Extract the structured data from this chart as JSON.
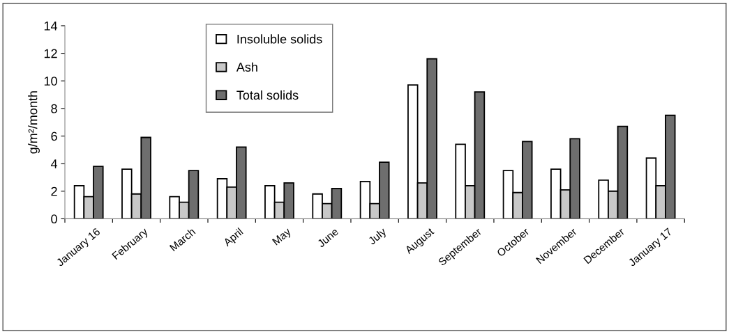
{
  "chart_data": {
    "type": "bar",
    "ylabel": "g/m²/month",
    "categories": [
      "January 16",
      "February",
      "March",
      "April",
      "May",
      "June",
      "July",
      "August",
      "September",
      "October",
      "November",
      "December",
      "January 17"
    ],
    "series": [
      {
        "name": "Insoluble solids",
        "color": "#ffffff",
        "values": [
          2.4,
          3.6,
          1.6,
          2.9,
          2.4,
          1.8,
          2.7,
          9.7,
          5.4,
          3.5,
          3.6,
          2.8,
          4.4
        ]
      },
      {
        "name": "Ash",
        "color": "#c8c8c8",
        "values": [
          1.6,
          1.8,
          1.2,
          2.3,
          1.2,
          1.1,
          1.1,
          2.6,
          2.4,
          1.9,
          2.1,
          2.0,
          2.4
        ]
      },
      {
        "name": "Total solids",
        "color": "#6e6e6e",
        "values": [
          3.8,
          5.9,
          3.5,
          5.2,
          2.6,
          2.2,
          4.1,
          11.6,
          9.2,
          5.6,
          5.8,
          6.7,
          7.5
        ]
      }
    ],
    "ylim": [
      0,
      14
    ],
    "yticks": [
      0,
      2,
      4,
      6,
      8,
      10,
      12,
      14
    ],
    "grid": false,
    "legend": "top"
  }
}
